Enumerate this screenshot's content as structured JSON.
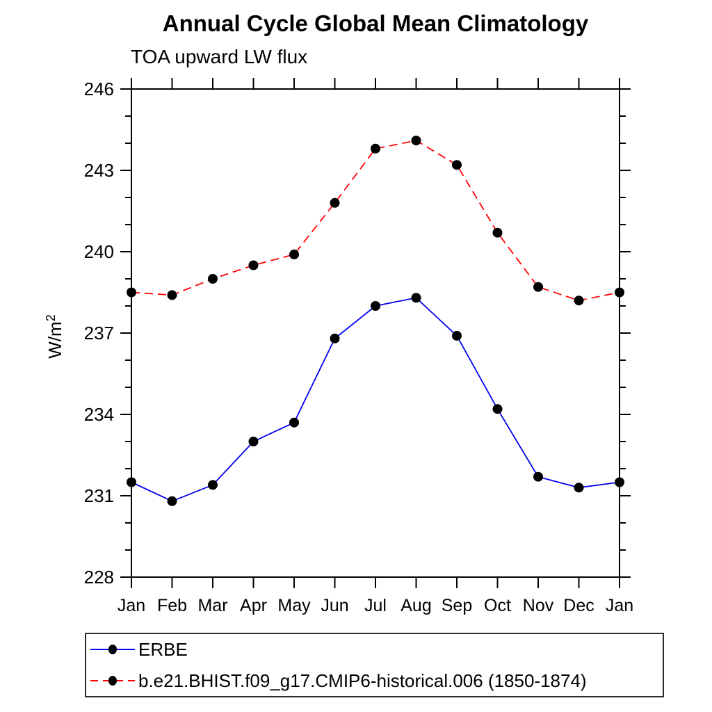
{
  "chart_data": {
    "type": "line",
    "title": "Annual Cycle Global Mean Climatology",
    "subtitle": "TOA upward LW flux",
    "ylabel": "W/m²",
    "ylabel_base": "W/m",
    "ylabel_exponent": "2",
    "x_categories": [
      "Jan",
      "Feb",
      "Mar",
      "Apr",
      "May",
      "Jun",
      "Jul",
      "Aug",
      "Sep",
      "Oct",
      "Nov",
      "Dec",
      "Jan"
    ],
    "ylim": [
      228,
      246
    ],
    "ytick_major_step": 3,
    "ytick_minor_step": 1,
    "ytick_major_labels": [
      "228",
      "231",
      "234",
      "237",
      "240",
      "243",
      "246"
    ],
    "grid": false,
    "legend_position": "bottom-left",
    "marker_shape": "filled-circle",
    "marker_color": "#000000",
    "series": [
      {
        "name": "ERBE",
        "line_color": "#0000ee",
        "line_style": "solid",
        "values": [
          231.5,
          230.8,
          231.4,
          233.0,
          233.7,
          236.8,
          238.0,
          238.3,
          236.9,
          234.2,
          231.7,
          231.3,
          231.5
        ]
      },
      {
        "name": "b.e21.BHIST.f09_g17.CMIP6-historical.006 (1850-1874)",
        "line_color": "#ff0000",
        "line_style": "dashed",
        "values": [
          238.5,
          238.4,
          239.0,
          239.5,
          239.9,
          241.8,
          243.8,
          244.1,
          243.2,
          240.7,
          238.7,
          238.2,
          238.5
        ]
      }
    ]
  }
}
